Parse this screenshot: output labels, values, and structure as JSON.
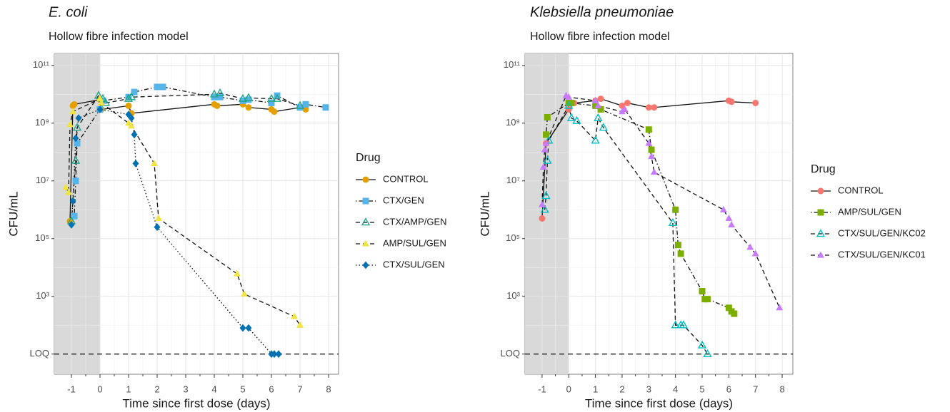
{
  "chart_data": [
    {
      "type": "scatter-line",
      "title": "E. coli",
      "subtitle": "Hollow fibre infection model",
      "x_label": "Time since first dose (days)",
      "y_label": "CFU/mL",
      "legend_title": "Drug",
      "log_y": true,
      "grid": true,
      "legend": "right",
      "shade_until": 0,
      "hline": 10,
      "xlim": [
        -1.6,
        8.35
      ],
      "xticks": [
        -1,
        0,
        1,
        2,
        3,
        4,
        5,
        6,
        7,
        8
      ],
      "ylim": [
        2,
        260000000000
      ],
      "yticks": [
        {
          "value": 10,
          "label": "LOQ"
        },
        {
          "value": 1000,
          "label": "10³"
        },
        {
          "value": 100000,
          "label": "10⁵"
        },
        {
          "value": 10000000,
          "label": "10⁷"
        },
        {
          "value": 1000000000,
          "label": "10⁹"
        },
        {
          "value": 100000000000,
          "label": "10¹¹"
        }
      ],
      "series": [
        {
          "name": "CONTROL",
          "color": "#e69f00",
          "dash": "solid",
          "marker": "circle",
          "x": [
            -1.05,
            -0.95,
            -0.9,
            0,
            0.05,
            1,
            1.1,
            4,
            4.1,
            5,
            5.2,
            6,
            6.1,
            7,
            7.2
          ],
          "values": [
            400000,
            4000000000,
            4500000000,
            6500000000,
            3000000000,
            4000000000,
            2200000000,
            4500000000,
            4000000000,
            4500000000,
            3500000000,
            3000000000,
            2500000000,
            3500000000,
            3000000000
          ]
        },
        {
          "name": "CTX/GEN",
          "color": "#56b4e9",
          "dash": "dotdash",
          "marker": "square",
          "x": [
            -0.9,
            -0.85,
            -0.8,
            0,
            0.1,
            1,
            1.2,
            2,
            2.2,
            4,
            4.2,
            5,
            5.2,
            6,
            6.2,
            7,
            7.2,
            7.9
          ],
          "values": [
            600000,
            10000000,
            200000000,
            3000000000,
            6000000000,
            8000000000,
            12000000000,
            18000000000,
            18000000000,
            8000000000,
            8000000000,
            6000000000,
            6500000000,
            5000000000,
            9000000000,
            3500000000,
            4500000000,
            3500000000
          ]
        },
        {
          "name": "CTX/AMP/GEN",
          "color": "#20a387",
          "dash": "dashed",
          "marker": "triangle-open",
          "x": [
            -1,
            -0.85,
            -0.8,
            -0.05,
            0.1,
            0.2,
            1,
            1.1,
            4,
            4.2,
            5,
            5.2,
            6,
            6.2,
            7
          ],
          "values": [
            400000,
            50000000,
            700000000,
            9000000000,
            7000000000,
            5000000000,
            7000000000,
            8000000000,
            10000000000,
            11000000000,
            7000000000,
            7500000000,
            7000000000,
            7000000000,
            4000000000
          ]
        },
        {
          "name": "AMP/SUL/GEN",
          "color": "#f0e442",
          "dash": "dashed",
          "marker": "triangle",
          "x": [
            -1.2,
            -1.1,
            -1.05,
            -0.95,
            0,
            0.05,
            1,
            1.1,
            1.9,
            2.05,
            4.8,
            5.05,
            6.8,
            7
          ],
          "values": [
            6000000,
            4000000,
            900000000,
            2500000000,
            7000000000,
            5000000000,
            1000000000,
            800000000,
            40000000,
            500000,
            6000,
            1200,
            200,
            100
          ]
        },
        {
          "name": "CTX/SUL/GEN",
          "color": "#0072b2",
          "dash": "dotted",
          "marker": "diamond",
          "x": [
            -1,
            -0.95,
            -0.85,
            -0.75,
            0,
            1,
            1.1,
            1.2,
            1.25,
            2,
            5,
            5.2,
            6,
            6.1,
            6.25
          ],
          "values": [
            300000,
            2000000,
            300000000,
            1500000000,
            3000000000,
            2000000000,
            1500000000,
            400000000,
            40000000,
            250000,
            80,
            80,
            10,
            10,
            10
          ]
        }
      ]
    },
    {
      "type": "scatter-line",
      "title": "Klebsiella pneumoniae",
      "subtitle": "Hollow fibre infection model",
      "x_label": "Time since first dose (days)",
      "y_label": "CFU/mL",
      "legend_title": "Drug",
      "log_y": true,
      "grid": true,
      "legend": "right",
      "shade_until": 0,
      "hline": 10,
      "xlim": [
        -1.64,
        8.4
      ],
      "xticks": [
        -1,
        0,
        1,
        2,
        3,
        4,
        5,
        6,
        7,
        8
      ],
      "ylim": [
        2,
        260000000000
      ],
      "yticks": [
        {
          "value": 10,
          "label": "LOQ"
        },
        {
          "value": 1000,
          "label": "10³"
        },
        {
          "value": 100000,
          "label": "10⁵"
        },
        {
          "value": 10000000,
          "label": "10⁷"
        },
        {
          "value": 1000000000,
          "label": "10⁹"
        },
        {
          "value": 100000000000,
          "label": "10¹¹"
        }
      ],
      "series": [
        {
          "name": "CONTROL",
          "color": "#f8766d",
          "dash": "solid",
          "marker": "circle",
          "x": [
            -1,
            -0.85,
            0,
            0.2,
            1,
            1.2,
            2,
            2.2,
            3,
            3.2,
            6,
            6.1,
            7
          ],
          "values": [
            500000,
            200000000,
            3000000000,
            5000000000,
            6000000000,
            7000000000,
            4000000000,
            5000000000,
            3500000000,
            3500000000,
            6000000000,
            5500000000,
            5000000000
          ]
        },
        {
          "name": "AMP/SUL/GEN",
          "color": "#7cae00",
          "dash": "dotdash",
          "marker": "square",
          "x": [
            -0.85,
            -0.8,
            0,
            0.1,
            1,
            1.2,
            3,
            3.1,
            4,
            4.1,
            4.2,
            5,
            5.1,
            5.2,
            6,
            6.1,
            6.2
          ],
          "values": [
            400000000,
            1600000000,
            5000000000,
            5000000000,
            4000000000,
            3000000000,
            600000000,
            120000000,
            1000000,
            60000,
            30000,
            1500,
            800,
            800,
            400,
            300,
            250
          ]
        },
        {
          "name": "CTX/SUL/GEN/KC02",
          "color": "#00bfc4",
          "dash": "dashed",
          "marker": "triangle-open",
          "x": [
            -0.9,
            -0.85,
            -0.8,
            -0.75,
            0,
            0.1,
            0.3,
            1,
            1.1,
            1.3,
            3.9,
            4,
            4.2,
            4.3,
            5,
            5.2
          ],
          "values": [
            1000000,
            3000000,
            50000000,
            250000000,
            4000000000,
            1500000000,
            1200000000,
            250000000,
            1500000000,
            700000000,
            350000,
            100,
            100,
            100,
            20,
            10
          ]
        },
        {
          "name": "CTX/SUL/GEN/KC01",
          "color": "#c77cff",
          "dash": "dashed",
          "marker": "triangle",
          "x": [
            -1,
            -0.95,
            -0.9,
            -0.85,
            -0.1,
            0,
            1,
            1.1,
            2,
            2.1,
            3,
            3.1,
            3.2,
            5.8,
            6,
            6.1,
            6.8,
            7,
            7.9
          ],
          "values": [
            1500000,
            30000000,
            120000000,
            200000000,
            9000000000,
            8000000000,
            6000000000,
            4000000000,
            2500000000,
            3000000000,
            200000000,
            70000000,
            20000000,
            1000000,
            500000,
            300000,
            50000,
            30000,
            400
          ]
        }
      ]
    }
  ]
}
